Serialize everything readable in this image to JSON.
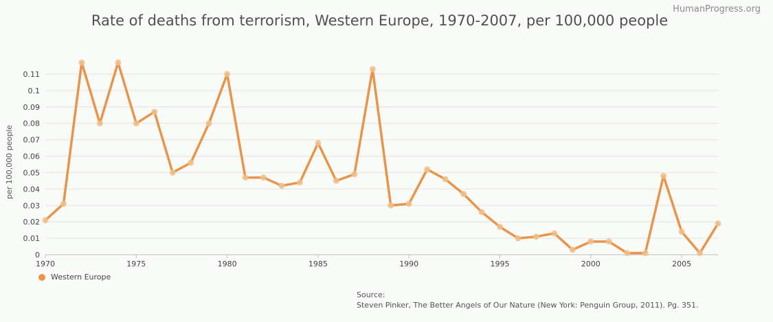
{
  "watermark": "HumanProgress.org",
  "legend": {
    "label": "Western Europe"
  },
  "source": {
    "label": "Source:",
    "text": "Steven Pinker, The Better Angels of Our Nature (New York: Penguin Group, 2011). Pg. 351."
  },
  "colors": {
    "line": "#e8954a",
    "marker": "#f0bf8c",
    "grid": "#e2e2e2",
    "axis": "#bdbdbd"
  },
  "chart_data": {
    "type": "line",
    "title": "Rate of deaths from terrorism, Western Europe, 1970-2007, per 100,000 people",
    "xlabel": "",
    "ylabel": "per 100,000 people",
    "xlim": [
      1970,
      2007
    ],
    "ylim": [
      0,
      0.12
    ],
    "x_ticks": [
      1970,
      1975,
      1980,
      1985,
      1990,
      1995,
      2000,
      2005
    ],
    "y_ticks": [
      0,
      0.01,
      0.02,
      0.03,
      0.04,
      0.05,
      0.06,
      0.07,
      0.08,
      0.09,
      0.1,
      0.11
    ],
    "y_tick_labels": [
      "0",
      "0.01",
      "0.02",
      "0.03",
      "0.04",
      "0.05",
      "0.06",
      "0.07",
      "0.08",
      "0.09",
      "0.1",
      "0.11"
    ],
    "grid": true,
    "legend_position": "bottom-left",
    "series": [
      {
        "name": "Western Europe",
        "x": [
          1970,
          1971,
          1972,
          1973,
          1974,
          1975,
          1976,
          1977,
          1978,
          1979,
          1980,
          1981,
          1982,
          1983,
          1984,
          1985,
          1986,
          1987,
          1988,
          1989,
          1990,
          1991,
          1992,
          1993,
          1994,
          1995,
          1996,
          1997,
          1998,
          1999,
          2000,
          2001,
          2002,
          2003,
          2004,
          2005,
          2006,
          2007
        ],
        "values": [
          0.021,
          0.031,
          0.117,
          0.08,
          0.117,
          0.08,
          0.087,
          0.05,
          0.056,
          0.08,
          0.11,
          0.047,
          0.047,
          0.042,
          0.044,
          0.068,
          0.045,
          0.049,
          0.113,
          0.03,
          0.031,
          0.052,
          0.046,
          0.037,
          0.026,
          0.017,
          0.01,
          0.011,
          0.013,
          0.003,
          0.008,
          0.008,
          0.001,
          0.001,
          0.048,
          0.014,
          0.001,
          0.019
        ]
      }
    ]
  }
}
